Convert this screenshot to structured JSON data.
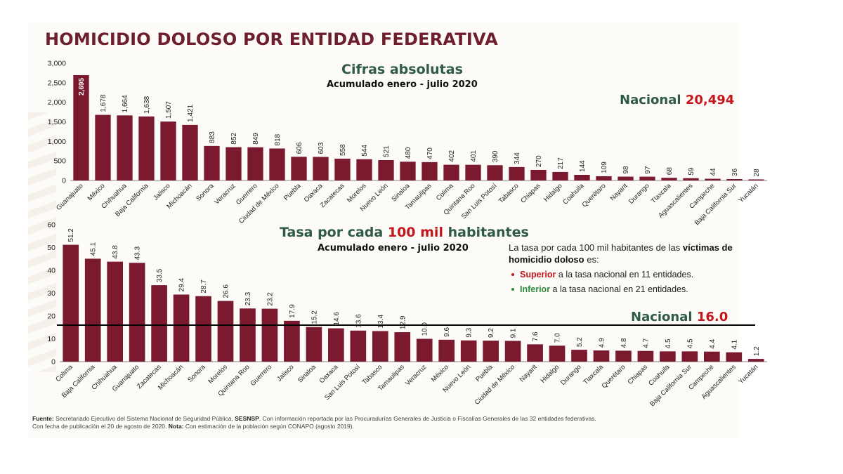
{
  "page": {
    "title": "HOMICIDIO DOLOSO POR ENTIDAD FEDERATIVA",
    "top_chart": {
      "subtitle": "Cifras absolutas",
      "period": "Acumulado enero - julio 2020",
      "nacional_label": "Nacional",
      "nacional_value": "20,494"
    },
    "bottom_chart": {
      "subtitle_pre": "Tasa por cada",
      "subtitle_highlight": "100 mil",
      "subtitle_post": "habitantes",
      "period": "Acumulado enero - julio 2020",
      "nacional_label": "Nacional",
      "nacional_value": "16.0",
      "note_pre": "La tasa por cada 100 mil habitantes de las",
      "note_bold": "víctimas de homicidio doloso",
      "note_post": "es:",
      "bullet1_bold": "Superior",
      "bullet1_rest": "a la tasa nacional en 11 entidades.",
      "bullet2_bold": "Inferior",
      "bullet2_rest": "a la tasa nacional en 21 entidades."
    },
    "footer": {
      "fuente_label": "Fuente:",
      "fuente_pre": "Secretariado Ejecutivo del Sistema Nacional de Seguridad Pública,",
      "fuente_bold": "SESNSP",
      "fuente_post": ". Con información reportada por las Procuradurías Generales de Justicia o Fiscalías Generales de las 32 entidades federativas.",
      "line2_pre": "Con fecha de publicación el 20 de agosto de 2020.",
      "nota_label": "Nota:",
      "nota_text": "Con estimación de la población según CONAPO (agosto 2019)."
    }
  },
  "colors": {
    "bar": "#7b1a2f",
    "title": "#6d1f2b",
    "green": "#2f5a46",
    "red": "#c4161c"
  },
  "chart_data": [
    {
      "type": "bar",
      "title": "Cifras absolutas",
      "ylim": [
        0,
        3000
      ],
      "yticks": [
        "0",
        "500",
        "1,000",
        "1,500",
        "2,000",
        "2,500",
        "3,000"
      ],
      "categories": [
        "Guanajuato",
        "México",
        "Chihuahua",
        "Baja California",
        "Jalisco",
        "Michoacán",
        "Sonora",
        "Veracruz",
        "Guerrero",
        "Ciudad de México",
        "Puebla",
        "Oaxaca",
        "Zacatecas",
        "Morelos",
        "Nuevo León",
        "Sinaloa",
        "Tamaulipas",
        "Colima",
        "Quintana Roo",
        "San Luis Potosí",
        "Tabasco",
        "Chiapas",
        "Hidalgo",
        "Coahuila",
        "Querétaro",
        "Nayarit",
        "Durango",
        "Tlaxcala",
        "Aguascalientes",
        "Campeche",
        "Baja California Sur",
        "Yucatán"
      ],
      "values": [
        2695,
        1678,
        1664,
        1638,
        1507,
        1421,
        883,
        852,
        849,
        818,
        606,
        603,
        558,
        544,
        521,
        480,
        470,
        402,
        401,
        390,
        344,
        270,
        217,
        144,
        109,
        98,
        97,
        68,
        59,
        44,
        36,
        28
      ],
      "labels": [
        "2,695",
        "1,678",
        "1,664",
        "1,638",
        "1,507",
        "1,421",
        "883",
        "852",
        "849",
        "818",
        "606",
        "603",
        "558",
        "544",
        "521",
        "480",
        "470",
        "402",
        "401",
        "390",
        "344",
        "270",
        "217",
        "144",
        "109",
        "98",
        "97",
        "68",
        "59",
        "44",
        "36",
        "28"
      ]
    },
    {
      "type": "bar",
      "title": "Tasa por cada 100 mil habitantes",
      "ylim": [
        0,
        60
      ],
      "yticks": [
        "0",
        "10",
        "20",
        "30",
        "40",
        "50",
        "60"
      ],
      "reference_line": 16.0,
      "categories": [
        "Colima",
        "Baja California",
        "Chihuahua",
        "Guanajuato",
        "Zacatecas",
        "Michoacán",
        "Sonora",
        "Morelos",
        "Quintana Roo",
        "Guerrero",
        "Jalisco",
        "Sinaloa",
        "Oaxaca",
        "San Luis Potosí",
        "Tabasco",
        "Tamaulipas",
        "Veracruz",
        "México",
        "Nuevo León",
        "Puebla",
        "Ciudad de México",
        "Nayarit",
        "Hidalgo",
        "Durango",
        "Tlaxcala",
        "Querétaro",
        "Chiapas",
        "Coahuila",
        "Baja California Sur",
        "Campeche",
        "Aguascalientes",
        "Yucatán"
      ],
      "values": [
        51.2,
        45.1,
        43.8,
        43.3,
        33.5,
        29.4,
        28.7,
        26.6,
        23.3,
        23.2,
        17.9,
        15.2,
        14.6,
        13.6,
        13.4,
        12.9,
        10.0,
        9.6,
        9.3,
        9.2,
        9.1,
        7.6,
        7.0,
        5.2,
        4.9,
        4.8,
        4.7,
        4.5,
        4.5,
        4.4,
        4.1,
        1.2
      ],
      "labels": [
        "51.2",
        "45.1",
        "43.8",
        "43.3",
        "33.5",
        "29.4",
        "28.7",
        "26.6",
        "23.3",
        "23.2",
        "17.9",
        "15.2",
        "14.6",
        "13.6",
        "13.4",
        "12.9",
        "10.0",
        "9.6",
        "9.3",
        "9.2",
        "9.1",
        "7.6",
        "7.0",
        "5.2",
        "4.9",
        "4.8",
        "4.7",
        "4.5",
        "4.5",
        "4.4",
        "4.1",
        "1.2"
      ]
    }
  ]
}
